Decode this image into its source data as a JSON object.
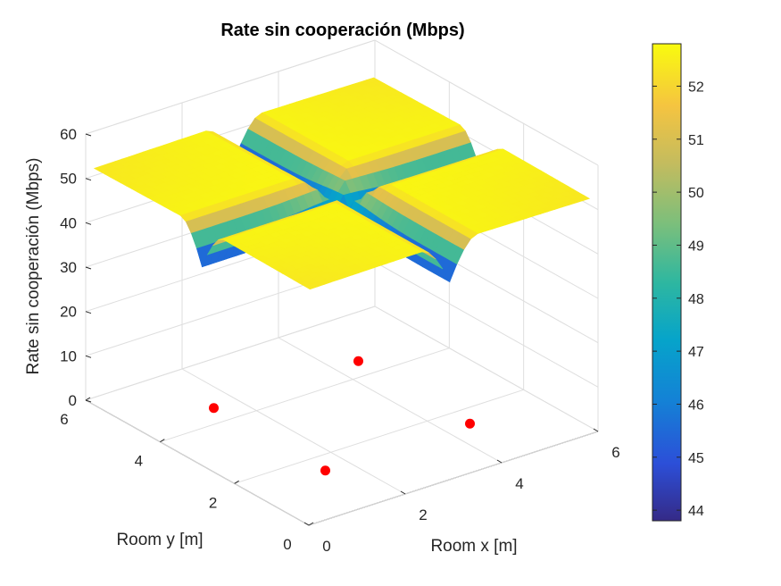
{
  "chart_data": {
    "type": "surface",
    "title": "Rate sin cooperación (Mbps)",
    "xlabel": "Room x [m]",
    "ylabel": "Room y [m]",
    "zlabel": "Rate sin cooperación (Mbps)",
    "xlim": [
      0,
      6
    ],
    "ylim": [
      0,
      6
    ],
    "zlim": [
      0,
      60
    ],
    "x_ticks": [
      "0",
      "2",
      "4",
      "6"
    ],
    "y_ticks": [
      "0",
      "2",
      "4",
      "6"
    ],
    "z_ticks": [
      "0",
      "10",
      "20",
      "30",
      "40",
      "50",
      "60"
    ],
    "grid": true,
    "colormap": "parula",
    "colorbar": {
      "location": "right",
      "range": [
        43.8,
        52.8
      ],
      "ticks": [
        "44",
        "45",
        "46",
        "47",
        "48",
        "49",
        "50",
        "51",
        "52"
      ]
    },
    "surface": {
      "grid_size": 6,
      "rate_max_mbps": 52.7,
      "rate_min_mbps": 43.8
    },
    "access_points": {
      "color": "#ff0000",
      "points": [
        {
          "x": 1.5,
          "y": 1.5,
          "z": 0
        },
        {
          "x": 4.5,
          "y": 1.5,
          "z": 0
        },
        {
          "x": 1.5,
          "y": 4.5,
          "z": 0
        },
        {
          "x": 4.5,
          "y": 4.5,
          "z": 0
        }
      ]
    }
  }
}
